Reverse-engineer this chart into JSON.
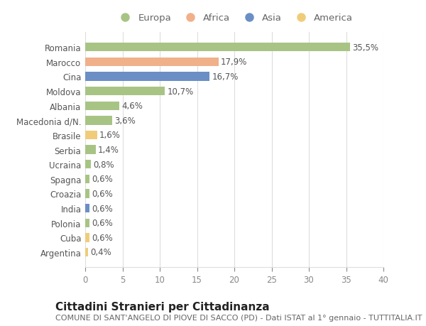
{
  "title": "Cittadini Stranieri per Cittadinanza",
  "subtitle": "COMUNE DI SANT'ANGELO DI PIOVE DI SACCO (PD) - Dati ISTAT al 1° gennaio - TUTTITALIA.IT",
  "categories": [
    "Romania",
    "Marocco",
    "Cina",
    "Moldova",
    "Albania",
    "Macedonia d/N.",
    "Brasile",
    "Serbia",
    "Ucraina",
    "Spagna",
    "Croazia",
    "India",
    "Polonia",
    "Cuba",
    "Argentina"
  ],
  "values": [
    35.5,
    17.9,
    16.7,
    10.7,
    4.6,
    3.6,
    1.6,
    1.4,
    0.8,
    0.6,
    0.6,
    0.6,
    0.6,
    0.6,
    0.4
  ],
  "labels": [
    "35,5%",
    "17,9%",
    "16,7%",
    "10,7%",
    "4,6%",
    "3,6%",
    "1,6%",
    "1,4%",
    "0,8%",
    "0,6%",
    "0,6%",
    "0,6%",
    "0,6%",
    "0,6%",
    "0,4%"
  ],
  "continents": [
    "Europa",
    "Africa",
    "Asia",
    "Europa",
    "Europa",
    "Europa",
    "America",
    "Europa",
    "Europa",
    "Europa",
    "Europa",
    "Asia",
    "Europa",
    "America",
    "America"
  ],
  "continent_colors": {
    "Europa": "#a8c485",
    "Africa": "#f0b08a",
    "Asia": "#6b8fc4",
    "America": "#f0cc7a"
  },
  "legend_order": [
    "Europa",
    "Africa",
    "Asia",
    "America"
  ],
  "xlim": [
    0,
    40
  ],
  "xticks": [
    0,
    5,
    10,
    15,
    20,
    25,
    30,
    35,
    40
  ],
  "background_color": "#ffffff",
  "grid_color": "#dddddd",
  "bar_height": 0.6,
  "title_fontsize": 11,
  "subtitle_fontsize": 8,
  "label_fontsize": 8.5,
  "tick_fontsize": 8.5,
  "legend_fontsize": 9.5
}
